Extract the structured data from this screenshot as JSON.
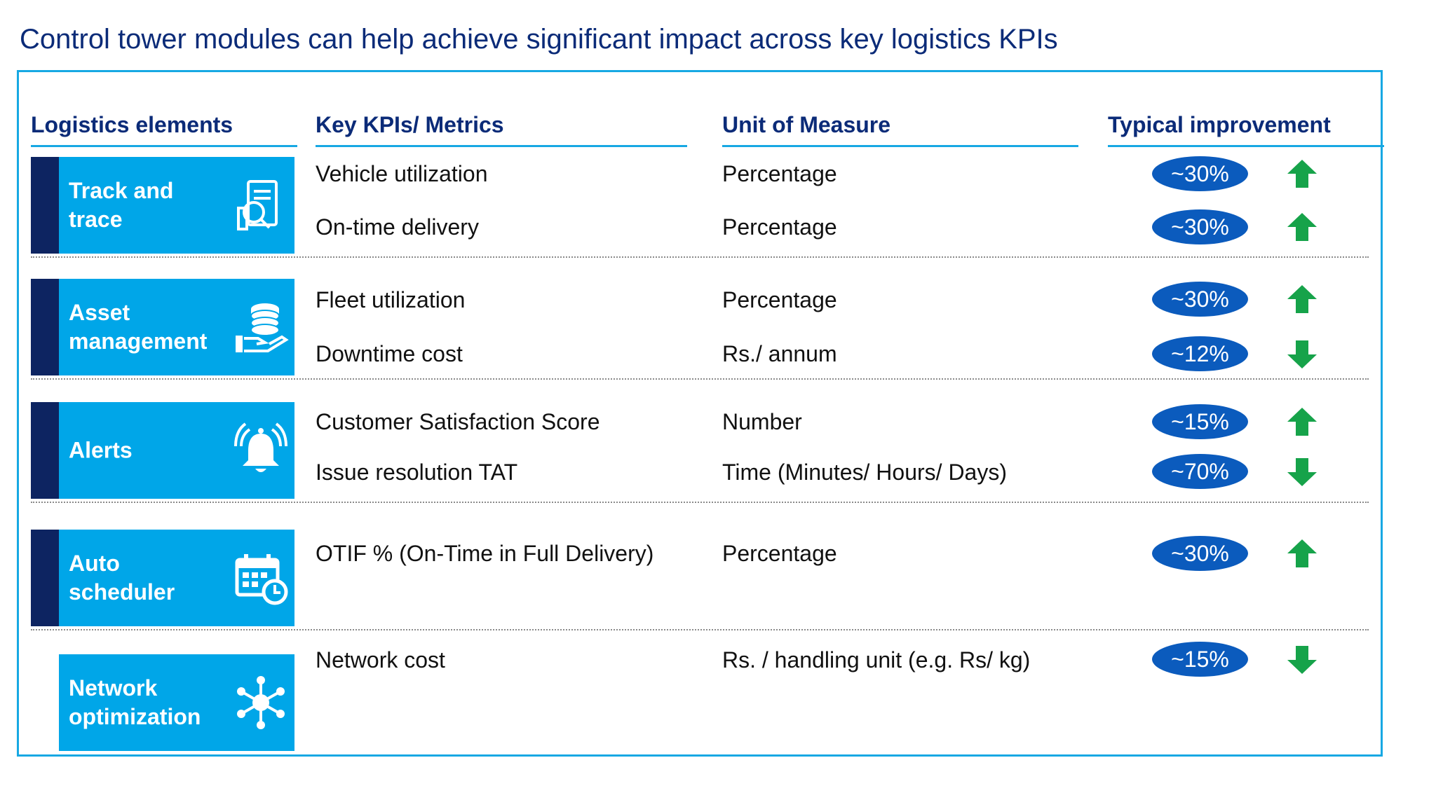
{
  "title": "Control tower modules can help achieve significant impact across key logistics KPIs",
  "headers": {
    "elements": "Logistics elements",
    "kpis": "Key KPIs/ Metrics",
    "unit": "Unit of Measure",
    "improvement": "Typical improvement"
  },
  "modules": [
    {
      "label": "Track and trace",
      "icon": "track-trace-icon"
    },
    {
      "label": "Asset management",
      "icon": "coins-hand-icon"
    },
    {
      "label": "Alerts",
      "icon": "bell-icon"
    },
    {
      "label": "Auto scheduler",
      "icon": "calendar-clock-icon"
    },
    {
      "label": "Network optimization",
      "icon": "network-hub-icon"
    }
  ],
  "rows": [
    {
      "kpi": "Vehicle utilization",
      "unit": "Percentage",
      "improvement": "~30%",
      "direction": "up"
    },
    {
      "kpi": "On-time delivery",
      "unit": "Percentage",
      "improvement": "~30%",
      "direction": "up"
    },
    {
      "kpi": "Fleet utilization",
      "unit": "Percentage",
      "improvement": "~30%",
      "direction": "up"
    },
    {
      "kpi": "Downtime cost",
      "unit": "Rs./ annum",
      "improvement": "~12%",
      "direction": "down"
    },
    {
      "kpi": "Customer Satisfaction Score",
      "unit": "Number",
      "improvement": "~15%",
      "direction": "up"
    },
    {
      "kpi": "Issue resolution TAT",
      "unit": "Time (Minutes/ Hours/ Days)",
      "improvement": "~70%",
      "direction": "down"
    },
    {
      "kpi": "OTIF % (On-Time in Full Delivery)",
      "unit": "Percentage",
      "improvement": "~30%",
      "direction": "up"
    },
    {
      "kpi": "Network cost",
      "unit": "Rs. / handling unit (e.g. Rs/ kg)",
      "improvement": "~15%",
      "direction": "down"
    }
  ],
  "colors": {
    "title": "#0b2b78",
    "module_bg": "#00a6e8",
    "sidebar": "#0d2461",
    "pill": "#0b5bbd",
    "arrow": "#16a34a",
    "frame": "#17a8e3"
  }
}
